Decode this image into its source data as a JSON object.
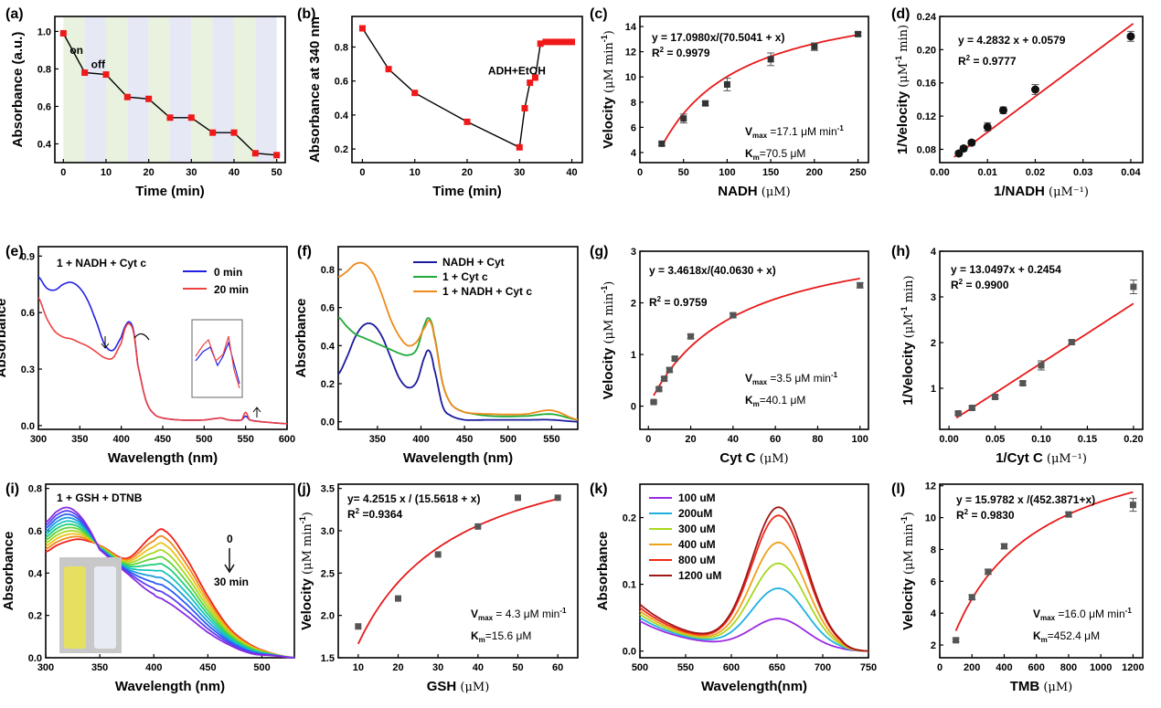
{
  "chart_data": [
    {
      "panel": "(a)",
      "type": "line",
      "xlabel": "Time (min)",
      "ylabel": "Absorbance (a.u.)",
      "xlim": [
        -2,
        52
      ],
      "ylim": [
        0.3,
        1.08
      ],
      "xticks": [
        0,
        10,
        20,
        30,
        40,
        50
      ],
      "yticks": [
        0.4,
        0.6,
        0.8,
        1.0
      ],
      "ytick_labels": [
        "0.4",
        "0.6",
        "0.8",
        "1.0"
      ],
      "x": [
        0,
        5,
        10,
        15,
        20,
        25,
        30,
        35,
        40,
        45,
        50
      ],
      "values": [
        0.99,
        0.78,
        0.77,
        0.65,
        0.64,
        0.54,
        0.54,
        0.46,
        0.46,
        0.35,
        0.34
      ],
      "bands": {
        "width": 5,
        "colors": [
          "#e8f2df",
          "#e6e8f6"
        ]
      },
      "annotations": [
        {
          "text": "on",
          "x": 1.5,
          "y": 0.88
        },
        {
          "text": "off",
          "x": 6.5,
          "y": 0.805
        }
      ]
    },
    {
      "panel": "(b)",
      "type": "line",
      "xlabel": "Time (min)",
      "ylabel": "Absorbance at 340 nm",
      "xlim": [
        -2,
        42
      ],
      "ylim": [
        0.12,
        0.98
      ],
      "xticks": [
        0,
        10,
        20,
        30,
        40
      ],
      "yticks": [
        0.2,
        0.4,
        0.6,
        0.8
      ],
      "ytick_labels": [
        "0.2",
        "0.4",
        "0.6",
        "0.8"
      ],
      "x": [
        0,
        5,
        10,
        20,
        30,
        31,
        32,
        33,
        34,
        35,
        36,
        37,
        38,
        39,
        40
      ],
      "values": [
        0.91,
        0.67,
        0.53,
        0.36,
        0.21,
        0.44,
        0.59,
        0.62,
        0.82,
        0.83,
        0.83,
        0.83,
        0.83,
        0.83,
        0.83
      ],
      "annotations": [
        {
          "text": "ADH+EtOH",
          "x": 24,
          "y": 0.64,
          "color": "#1f7fd6"
        }
      ]
    },
    {
      "panel": "(c)",
      "type": "scatter+fit",
      "xlabel": "NADH",
      "xunit": "(μM)",
      "ylabel": "Velocity",
      "xlim": [
        0,
        262
      ],
      "ylim": [
        3.2,
        14.8
      ],
      "xticks": [
        0,
        50,
        100,
        150,
        200,
        250
      ],
      "yticks": [
        4,
        6,
        8,
        10,
        12,
        14
      ],
      "x": [
        25,
        50,
        75,
        100,
        150,
        200,
        250
      ],
      "values": [
        4.7,
        6.7,
        7.9,
        9.4,
        11.4,
        12.4,
        13.4
      ],
      "errors": [
        0.15,
        0.35,
        0.15,
        0.5,
        0.5,
        0.3,
        0.15
      ],
      "fit": {
        "model": "mm",
        "vmax": 17.098,
        "km": 70.5041,
        "x0": 25,
        "x1": 250
      },
      "equation": "y = 17.0980x/(70.5041 + x)",
      "r2": "R",
      "r2_value": "= 0.9979",
      "vmax_label": "V",
      "vmax_text": "=17.1 μM min",
      "km_label": "K",
      "km_text": "=70.5 μM"
    },
    {
      "panel": "(d)",
      "type": "scatter+fit",
      "xlabel": "1/NADH",
      "xunit": "(μM⁻¹)",
      "ylabel": "1/Velocity",
      "xlim": [
        0,
        0.0425
      ],
      "ylim": [
        0.064,
        0.24
      ],
      "xticks": [
        0,
        0.01,
        0.02,
        0.03,
        0.04
      ],
      "yticks": [
        0.08,
        0.12,
        0.16,
        0.2,
        0.24
      ],
      "xtick_labels": [
        "0.00",
        "0.01",
        "0.02",
        "0.03",
        "0.04"
      ],
      "ytick_labels": [
        "0.08",
        "0.12",
        "0.16",
        "0.20",
        "0.24"
      ],
      "x": [
        0.004,
        0.005,
        0.00667,
        0.01,
        0.0133,
        0.02,
        0.04
      ],
      "values": [
        0.075,
        0.081,
        0.088,
        0.107,
        0.127,
        0.152,
        0.216
      ],
      "errors": [
        0.003,
        0.003,
        0.003,
        0.005,
        0.004,
        0.006,
        0.006
      ],
      "fit": {
        "model": "linear",
        "slope": 4.2832,
        "intercept": 0.0579,
        "x0": 0.003,
        "x1": 0.0405
      },
      "equation": "y = 4.2832 x + 0.0579",
      "r2": "R",
      "r2_value": "= 0.9777"
    },
    {
      "panel": "(e)",
      "type": "line",
      "xlabel": "Wavelength (nm)",
      "ylabel": "Absorbance",
      "xlim": [
        300,
        600
      ],
      "ylim": [
        -0.02,
        0.95
      ],
      "xticks": [
        300,
        350,
        400,
        450,
        500,
        550,
        600
      ],
      "yticks": [
        0.0,
        0.3,
        0.6,
        0.9
      ],
      "ytick_labels": [
        "0.0",
        "0.3",
        "0.6",
        "0.9"
      ],
      "title": "1 + NADH + Cyt c",
      "series": [
        {
          "name": "0 min",
          "color": "#1f1fe6",
          "x": [
            300,
            310,
            320,
            330,
            340,
            350,
            360,
            370,
            380,
            390,
            400,
            405,
            410,
            415,
            420,
            430,
            440,
            450,
            470,
            500,
            520,
            530,
            545,
            550,
            555,
            570,
            600
          ],
          "values": [
            0.79,
            0.73,
            0.72,
            0.75,
            0.76,
            0.73,
            0.66,
            0.55,
            0.43,
            0.4,
            0.47,
            0.53,
            0.55,
            0.5,
            0.32,
            0.13,
            0.06,
            0.04,
            0.03,
            0.03,
            0.04,
            0.03,
            0.03,
            0.05,
            0.03,
            0.02,
            0.01
          ]
        },
        {
          "name": "20 min",
          "color": "#f04040",
          "x": [
            300,
            310,
            320,
            330,
            340,
            350,
            360,
            370,
            380,
            390,
            400,
            405,
            410,
            415,
            420,
            430,
            440,
            450,
            470,
            500,
            520,
            530,
            545,
            550,
            555,
            570,
            600
          ],
          "values": [
            0.68,
            0.57,
            0.5,
            0.47,
            0.46,
            0.44,
            0.42,
            0.39,
            0.36,
            0.36,
            0.44,
            0.52,
            0.54,
            0.49,
            0.32,
            0.13,
            0.06,
            0.04,
            0.03,
            0.03,
            0.04,
            0.03,
            0.03,
            0.07,
            0.03,
            0.02,
            0.01
          ]
        }
      ]
    },
    {
      "panel": "(f)",
      "type": "line",
      "xlabel": "Wavelength (nm)",
      "ylabel": "Absorbance",
      "xlim": [
        305,
        580
      ],
      "ylim": [
        -0.04,
        0.92
      ],
      "xticks": [
        350,
        400,
        450,
        500,
        550
      ],
      "yticks": [
        0.0,
        0.2,
        0.4,
        0.6,
        0.8
      ],
      "ytick_labels": [
        "0.0",
        "0.2",
        "0.4",
        "0.6",
        "0.8"
      ],
      "series": [
        {
          "name": "NADH + Cyt",
          "color": "#1a1a9e",
          "x": [
            305,
            315,
            325,
            335,
            345,
            355,
            365,
            375,
            385,
            395,
            405,
            410,
            415,
            425,
            435,
            450,
            480,
            520,
            550,
            580
          ],
          "values": [
            0.25,
            0.34,
            0.45,
            0.51,
            0.51,
            0.45,
            0.34,
            0.23,
            0.18,
            0.21,
            0.35,
            0.37,
            0.28,
            0.08,
            0.03,
            0.01,
            0.01,
            0.01,
            0.01,
            0.0
          ]
        },
        {
          "name": "1 + Cyt c",
          "color": "#1faa3a",
          "x": [
            305,
            315,
            325,
            335,
            345,
            355,
            365,
            375,
            385,
            395,
            405,
            410,
            415,
            425,
            435,
            450,
            480,
            520,
            550,
            580
          ],
          "values": [
            0.55,
            0.5,
            0.46,
            0.44,
            0.42,
            0.4,
            0.38,
            0.36,
            0.35,
            0.38,
            0.52,
            0.54,
            0.46,
            0.2,
            0.09,
            0.05,
            0.03,
            0.03,
            0.04,
            0.01
          ]
        },
        {
          "name": "1 + NADH + Cyt c",
          "color": "#f08a1a",
          "x": [
            305,
            315,
            325,
            335,
            345,
            355,
            365,
            375,
            385,
            395,
            405,
            410,
            415,
            425,
            435,
            450,
            480,
            520,
            550,
            580
          ],
          "values": [
            0.76,
            0.79,
            0.83,
            0.83,
            0.78,
            0.67,
            0.54,
            0.45,
            0.4,
            0.42,
            0.5,
            0.53,
            0.45,
            0.2,
            0.09,
            0.05,
            0.04,
            0.04,
            0.06,
            0.01
          ]
        }
      ]
    },
    {
      "panel": "(g)",
      "type": "scatter+fit",
      "xlabel": "Cyt C",
      "xunit": "(μM)",
      "ylabel": "Velocity",
      "xlim": [
        -4,
        104
      ],
      "ylim": [
        -0.45,
        3.0
      ],
      "xticks": [
        0,
        20,
        40,
        60,
        80,
        100
      ],
      "yticks": [
        0,
        1,
        2,
        3
      ],
      "x": [
        2.5,
        5,
        7.5,
        10,
        12.5,
        20,
        40,
        100
      ],
      "values": [
        0.08,
        0.33,
        0.53,
        0.7,
        0.92,
        1.35,
        1.76,
        2.34
      ],
      "errors": [
        0.02,
        0.03,
        0.03,
        0.04,
        0.03,
        0.04,
        0.04,
        0.05
      ],
      "fit": {
        "model": "mm",
        "vmax": 3.4618,
        "km": 40.063,
        "x0": 2.5,
        "x1": 100
      },
      "equation": "y = 3.4618x/(40.0630 + x)",
      "r2": "R",
      "r2_value": "= 0.9759",
      "vmax_label": "V",
      "vmax_text": "=3.5 μM min",
      "km_label": "K",
      "km_text": "=40.1 μM"
    },
    {
      "panel": "(h)",
      "type": "scatter+fit",
      "xlabel": "1/Cyt C",
      "xunit": "(μM⁻¹)",
      "ylabel": "1/Velocity",
      "xlim": [
        -0.01,
        0.21
      ],
      "ylim": [
        0.1,
        4.0
      ],
      "xticks": [
        0.0,
        0.05,
        0.1,
        0.15,
        0.2
      ],
      "yticks": [
        1,
        2,
        3,
        4
      ],
      "xtick_labels": [
        "0.00",
        "0.05",
        "0.10",
        "0.15",
        "0.20"
      ],
      "x": [
        0.01,
        0.025,
        0.05,
        0.08,
        0.1,
        0.133,
        0.2
      ],
      "values": [
        0.45,
        0.57,
        0.81,
        1.11,
        1.5,
        2.01,
        3.22
      ],
      "errors": [
        0.03,
        0.03,
        0.04,
        0.04,
        0.1,
        0.04,
        0.15
      ],
      "fit": {
        "model": "linear",
        "slope": 13.0497,
        "intercept": 0.2454,
        "x0": 0.008,
        "x1": 0.2
      },
      "equation": "y = 13.0497x + 0.2454",
      "r2": "R",
      "r2_value": "= 0.9900"
    },
    {
      "panel": "(i)",
      "type": "line",
      "xlabel": "Wavelength (nm)",
      "ylabel": "Absorbance",
      "xlim": [
        300,
        530
      ],
      "ylim": [
        0.0,
        0.82
      ],
      "xticks": [
        300,
        350,
        400,
        450,
        500
      ],
      "yticks": [
        0.0,
        0.2,
        0.4,
        0.6,
        0.8
      ],
      "ytick_labels": [
        "0.0",
        "0.2",
        "0.4",
        "0.6",
        "0.8"
      ],
      "title": "1 + GSH + DTNB",
      "arrow_top": "0",
      "arrow_bottom": "30 min",
      "series_count": 11,
      "colors": [
        "#8a2be2",
        "#5a3ef0",
        "#2a5cf5",
        "#1a9be0",
        "#18c4c0",
        "#1ecf7a",
        "#60d23a",
        "#a8d81e",
        "#e8c41a",
        "#f08a1a",
        "#f0201a"
      ],
      "start_values": [
        0.5,
        0.53,
        0.55,
        0.56,
        0.55,
        0.53,
        0.47,
        0.58,
        0.6,
        0.47,
        0.29,
        0.14,
        0.06,
        0.02,
        0.0
      ],
      "end_values": [
        0.64,
        0.69,
        0.71,
        0.68,
        0.61,
        0.51,
        0.4,
        0.3,
        0.27,
        0.2,
        0.12,
        0.06,
        0.02,
        0.01,
        0.0
      ],
      "x": [
        300,
        310,
        320,
        330,
        340,
        350,
        375,
        400,
        410,
        430,
        450,
        470,
        490,
        510,
        530
      ]
    },
    {
      "panel": "(j)",
      "type": "scatter+fit",
      "xlabel": "GSH",
      "xunit": "(μM)",
      "ylabel": "Velocity",
      "xlim": [
        5,
        65
      ],
      "ylim": [
        1.5,
        3.55
      ],
      "xticks": [
        10,
        20,
        30,
        40,
        50,
        60
      ],
      "yticks": [
        1.5,
        2.0,
        2.5,
        3.0,
        3.5
      ],
      "ytick_labels": [
        "1.5",
        "2.0",
        "2.5",
        "3.0",
        "3.5"
      ],
      "x": [
        10,
        20,
        30,
        40,
        50,
        60
      ],
      "values": [
        1.87,
        2.2,
        2.72,
        3.05,
        3.39,
        3.39
      ],
      "fit": {
        "model": "mm",
        "vmax": 4.2515,
        "km": 15.5618,
        "x0": 10,
        "x1": 60
      },
      "equation": "y= 4.2515 x / (15.5618 + x)",
      "r2": "R",
      "r2_value": "=0.9364",
      "vmax_label": "V",
      "vmax_text": "= 4.3 μM min",
      "km_label": "K",
      "km_text": "=15.6 μM"
    },
    {
      "panel": "(k)",
      "type": "line",
      "xlabel": "Wavelength(nm)",
      "ylabel": "Absorbance",
      "xlim": [
        500,
        750
      ],
      "ylim": [
        -0.01,
        0.25
      ],
      "xticks": [
        500,
        550,
        600,
        650,
        700,
        750
      ],
      "yticks": [
        0.0,
        0.1,
        0.2
      ],
      "ytick_labels": [
        "0.0",
        "0.1",
        "0.2"
      ],
      "series": [
        {
          "name": "100 uM",
          "color": "#9a2be2",
          "base": 0.045,
          "peak": 0.045
        },
        {
          "name": "200uM",
          "color": "#1fb0e0",
          "base": 0.05,
          "peak": 0.09
        },
        {
          "name": "300 uM",
          "color": "#a8d81e",
          "base": 0.055,
          "peak": 0.127
        },
        {
          "name": "400 uM",
          "color": "#f0a01a",
          "base": 0.06,
          "peak": 0.158
        },
        {
          "name": "800 uM",
          "color": "#f02a1a",
          "base": 0.065,
          "peak": 0.198
        },
        {
          "name": "1200 uM",
          "color": "#a01818",
          "base": 0.07,
          "peak": 0.21
        }
      ]
    },
    {
      "panel": "(l)",
      "type": "scatter+fit",
      "xlabel": "TMB",
      "xunit": "(μM)",
      "ylabel": "Velocity",
      "xlim": [
        0,
        1260
      ],
      "ylim": [
        1.2,
        12.1
      ],
      "xticks": [
        0,
        200,
        400,
        600,
        800,
        1000,
        1200
      ],
      "yticks": [
        2,
        4,
        6,
        8,
        10,
        12
      ],
      "x": [
        100,
        200,
        300,
        400,
        800,
        1200
      ],
      "values": [
        2.3,
        5.0,
        6.6,
        8.2,
        10.2,
        10.8
      ],
      "errors": [
        0.1,
        0.15,
        0.15,
        0.15,
        0.15,
        0.4
      ],
      "fit": {
        "model": "mm",
        "vmax": 15.9782,
        "km": 452.3871,
        "x0": 100,
        "x1": 1200
      },
      "equation": "y = 15.9782 x /(452.3871+x)",
      "r2": "R",
      "r2_value": "= 0.9830",
      "vmax_label": "V",
      "vmax_text": "=16.0 μM min",
      "km_label": "K",
      "km_text": "=452.4 μM"
    }
  ],
  "labels": {
    "vel_unit_prefix": "(μM min",
    "vel_unit_suffix": ")",
    "vel_exp": "-1",
    "inv_unit_prefix": "(μM",
    "inv_unit_suffix": " min)",
    "inv_exp": "-1",
    "max_sub": "max",
    "m_sub": "m",
    "sq": "2",
    "min_exp": "-1"
  }
}
